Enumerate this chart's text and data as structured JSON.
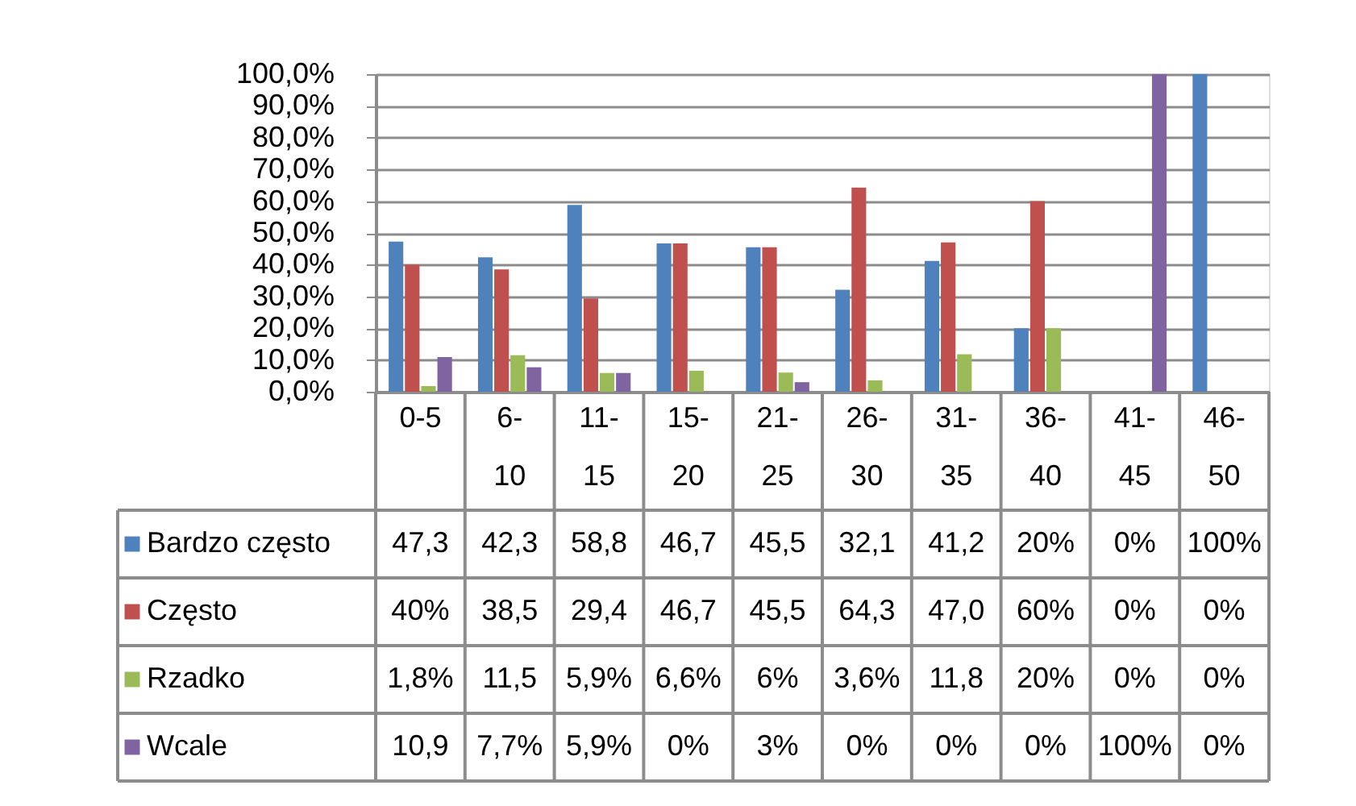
{
  "chart_data": {
    "type": "bar",
    "categories": [
      "0-5",
      "6-10",
      "11-15",
      "15-20",
      "21-25",
      "26-30",
      "31-35",
      "36-40",
      "41-45",
      "46-50"
    ],
    "series": [
      {
        "name": "Bardzo często",
        "color": "#4f81bd",
        "values": [
          47.3,
          42.3,
          58.8,
          46.7,
          45.5,
          32.1,
          41.2,
          20,
          0,
          100
        ],
        "value_labels": [
          "47,3",
          "42,3",
          "58,8",
          "46,7",
          "45,5",
          "32,1",
          "41,2",
          "20%",
          "0%",
          "100%"
        ]
      },
      {
        "name": "Często",
        "color": "#c0504d",
        "values": [
          40,
          38.5,
          29.4,
          46.7,
          45.5,
          64.3,
          47.0,
          60,
          0,
          0
        ],
        "value_labels": [
          "40%",
          "38,5",
          "29,4",
          "46,7",
          "45,5",
          "64,3",
          "47,0",
          "60%",
          "0%",
          "0%"
        ]
      },
      {
        "name": "Rzadko",
        "color": "#9bbb59",
        "values": [
          1.8,
          11.5,
          5.9,
          6.6,
          6,
          3.6,
          11.8,
          20,
          0,
          0
        ],
        "value_labels": [
          "1,8%",
          "11,5",
          "5,9%",
          "6,6%",
          "6%",
          "3,6%",
          "11,8",
          "20%",
          "0%",
          "0%"
        ]
      },
      {
        "name": "Wcale",
        "color": "#8064a2",
        "values": [
          10.9,
          7.7,
          5.9,
          0,
          3,
          0,
          0,
          0,
          100,
          0
        ],
        "value_labels": [
          "10,9",
          "7,7%",
          "5,9%",
          "0%",
          "3%",
          "0%",
          "0%",
          "0%",
          "100%",
          "0%"
        ]
      }
    ],
    "ylim": [
      0,
      100
    ],
    "yticks": [
      {
        "value": 0,
        "label": "0,0%"
      },
      {
        "value": 10,
        "label": "10,0%"
      },
      {
        "value": 20,
        "label": "20,0%"
      },
      {
        "value": 30,
        "label": "30,0%"
      },
      {
        "value": 40,
        "label": "40,0%"
      },
      {
        "value": 50,
        "label": "50,0%"
      },
      {
        "value": 60,
        "label": "60,0%"
      },
      {
        "value": 70,
        "label": "70,0%"
      },
      {
        "value": 80,
        "label": "80,0%"
      },
      {
        "value": 90,
        "label": "90,0%"
      },
      {
        "value": 100,
        "label": "100,0%"
      }
    ],
    "grid": "y",
    "legend": "bottom left"
  }
}
